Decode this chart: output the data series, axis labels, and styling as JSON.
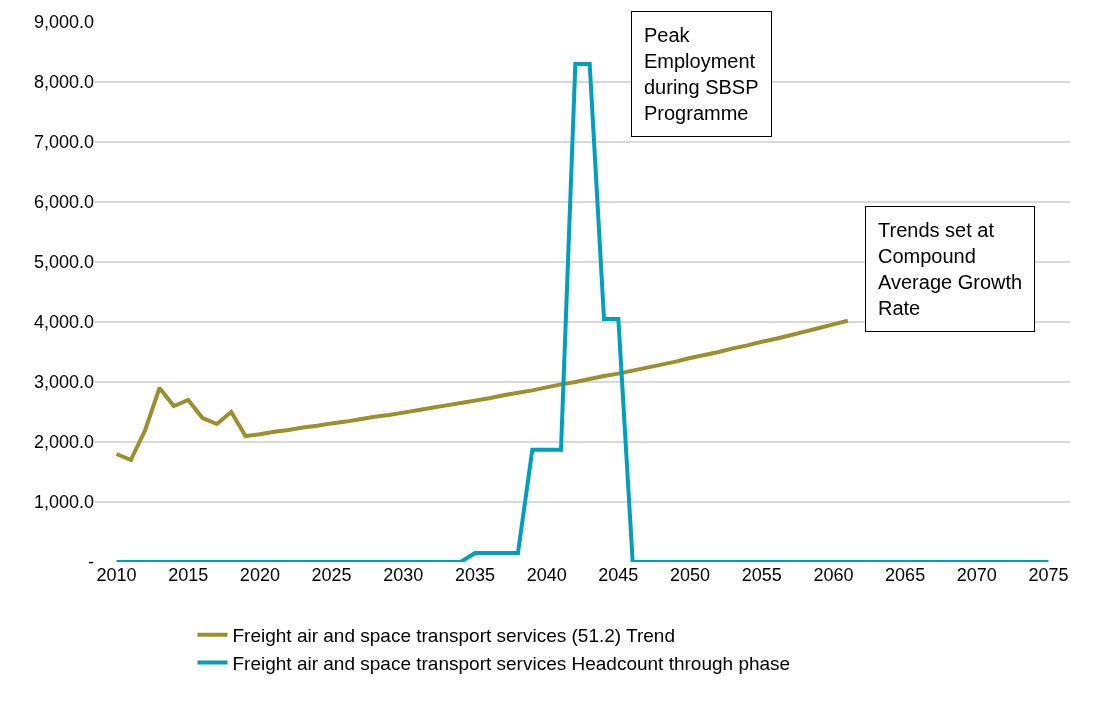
{
  "chart_data": {
    "type": "line",
    "x": [
      2010,
      2011,
      2012,
      2013,
      2014,
      2015,
      2016,
      2017,
      2018,
      2019,
      2020,
      2021,
      2022,
      2023,
      2024,
      2025,
      2026,
      2027,
      2028,
      2029,
      2030,
      2031,
      2032,
      2033,
      2034,
      2035,
      2036,
      2037,
      2038,
      2039,
      2040,
      2041,
      2042,
      2043,
      2044,
      2045,
      2046,
      2047,
      2048,
      2049,
      2050,
      2051,
      2052,
      2053,
      2054,
      2055,
      2056,
      2057,
      2058,
      2059,
      2060,
      2061,
      2062,
      2063,
      2064,
      2065,
      2066,
      2067,
      2068,
      2069,
      2070,
      2071,
      2072,
      2073,
      2074,
      2075
    ],
    "series": [
      {
        "name": "Freight air and space transport services (51.2) Trend",
        "color": "#9c8f2e",
        "values": [
          1800,
          1700,
          2200,
          2900,
          2600,
          2700,
          2400,
          2300,
          2500,
          2100,
          2130,
          2170,
          2200,
          2240,
          2270,
          2310,
          2340,
          2380,
          2420,
          2450,
          2490,
          2530,
          2570,
          2610,
          2650,
          2690,
          2730,
          2780,
          2820,
          2860,
          2910,
          2960,
          3000,
          3050,
          3100,
          3140,
          3190,
          3240,
          3290,
          3340,
          3400,
          3450,
          3500,
          3560,
          3610,
          3670,
          3720,
          3780,
          3840,
          3900,
          3960,
          4020,
          null,
          null,
          null,
          null,
          null,
          null,
          null,
          null,
          null,
          null,
          null,
          null,
          null,
          null
        ]
      },
      {
        "name": "Freight air and space transport services Headcount through phase",
        "color": "#009fbd",
        "values": [
          0,
          0,
          0,
          0,
          0,
          0,
          0,
          0,
          0,
          0,
          0,
          0,
          0,
          0,
          0,
          0,
          0,
          0,
          0,
          0,
          0,
          0,
          0,
          0,
          0,
          150,
          150,
          150,
          150,
          1870,
          1870,
          1870,
          8300,
          8300,
          4050,
          4050,
          0,
          0,
          0,
          0,
          0,
          0,
          0,
          0,
          0,
          0,
          0,
          0,
          0,
          0,
          0,
          0,
          0,
          0,
          0,
          0,
          0,
          0,
          0,
          0,
          0,
          0,
          0,
          0,
          0,
          0
        ]
      }
    ],
    "xlim": [
      2008.5,
      2076.5
    ],
    "xticks": [
      2010,
      2015,
      2020,
      2025,
      2030,
      2035,
      2040,
      2045,
      2050,
      2055,
      2060,
      2065,
      2070,
      2075
    ],
    "ylim": [
      0,
      9000
    ],
    "yticks": [
      {
        "value": 0,
        "label": "-"
      },
      {
        "value": 1000,
        "label": "1,000.0"
      },
      {
        "value": 2000,
        "label": "2,000.0"
      },
      {
        "value": 3000,
        "label": "3,000.0"
      },
      {
        "value": 4000,
        "label": "4,000.0"
      },
      {
        "value": 5000,
        "label": "5,000.0"
      },
      {
        "value": 6000,
        "label": "6,000.0"
      },
      {
        "value": 7000,
        "label": "7,000.0"
      },
      {
        "value": 8000,
        "label": "8,000.0"
      },
      {
        "value": 9000,
        "label": "9,000.0"
      }
    ],
    "grid": "y",
    "legend": "bottom",
    "marker": "none",
    "line_style": "solid",
    "annotations": [
      "Peak Employment during SBSP Programme",
      "Trends set at Compound Average Growth Rate"
    ]
  }
}
